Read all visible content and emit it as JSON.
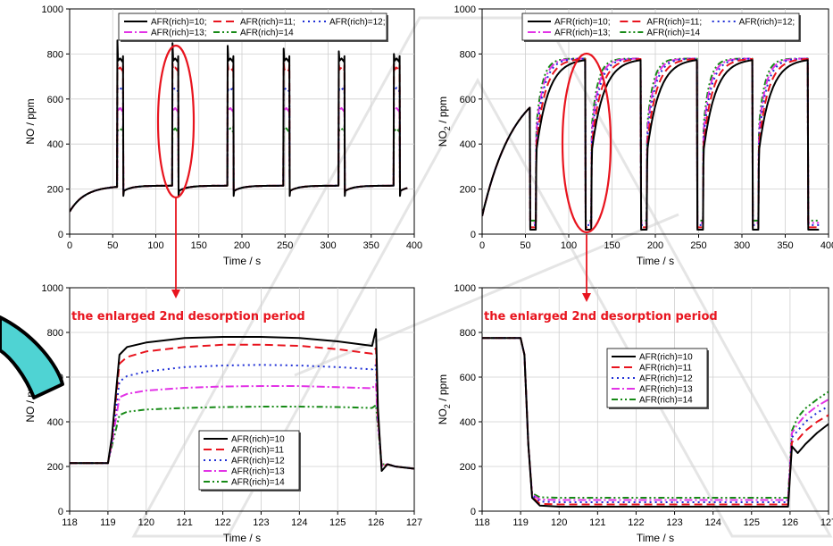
{
  "colors": {
    "s10": "#000000",
    "s11": "#e8141e",
    "s12": "#1f2fd6",
    "s13": "#e233e6",
    "s14": "#168a16",
    "annotation": "#e8141e",
    "watermark": "#cfcfcf",
    "watermark_fill": "#4fd3d3"
  },
  "chart_data": [
    {
      "id": "tl",
      "type": "line",
      "xlabel": "Time / s",
      "ylabel": "NO / ppm",
      "ylim": [
        0,
        1000
      ],
      "xlim": [
        0,
        400
      ],
      "yticks": [
        "0",
        "200",
        "400",
        "600",
        "800",
        "1000"
      ],
      "xticks": [
        "0",
        "50",
        "100",
        "150",
        "200",
        "250",
        "300",
        "350",
        "400"
      ],
      "grid": true,
      "legend": "top-center",
      "series_names": [
        "AFR(rich)=10;",
        "AFR(rich)=11;",
        "AFR(rich)=12;",
        "AFR(rich)=13;",
        "AFR(rich)=14"
      ],
      "lean_ppm": [
        100,
        215
      ],
      "desorption_start_s": [
        55,
        119,
        183,
        248,
        312,
        376
      ],
      "desorption_peak_ppm": [
        780,
        740,
        650,
        560,
        470
      ]
    },
    {
      "id": "tr",
      "type": "line",
      "xlabel": "Time / s",
      "ylabel": "NO",
      "ylabel_sub": "2",
      "ylabel_suffix": " / ppm",
      "ylim": [
        0,
        1000
      ],
      "xlim": [
        0,
        400
      ],
      "yticks": [
        "0",
        "200",
        "400",
        "600",
        "800",
        "1000"
      ],
      "xticks": [
        "0",
        "50",
        "100",
        "150",
        "200",
        "250",
        "300",
        "350",
        "400"
      ],
      "grid": true,
      "legend": "top-center",
      "series_names": [
        "AFR(rich)=10;",
        "AFR(rich)=11;",
        "AFR(rich)=12;",
        "AFR(rich)=13;",
        "AFR(rich)=14"
      ],
      "lean_max_ppm": 780,
      "rich_min_ppm": [
        20,
        30,
        40,
        50,
        60
      ]
    },
    {
      "id": "bl",
      "type": "line",
      "xlabel": "Time / s",
      "ylabel": "NO / ppm",
      "ylim": [
        0,
        1000
      ],
      "xlim": [
        118,
        127
      ],
      "yticks": [
        "0",
        "200",
        "400",
        "600",
        "800",
        "1000"
      ],
      "xticks": [
        "118",
        "119",
        "120",
        "121",
        "122",
        "123",
        "124",
        "125",
        "126",
        "127"
      ],
      "grid": true,
      "legend": "bottom-center",
      "annotation": "the enlarged 2nd desorption period",
      "series": [
        {
          "name": "AFR(rich)=10",
          "x": [
            118,
            119,
            119.1,
            119.3,
            119.5,
            120,
            121,
            122,
            123,
            124,
            125,
            125.9,
            126.0,
            126.05,
            126.15,
            126.3,
            126.5,
            127
          ],
          "y": [
            215,
            215,
            330,
            700,
            735,
            755,
            775,
            780,
            780,
            775,
            760,
            740,
            815,
            460,
            180,
            210,
            200,
            190
          ]
        },
        {
          "name": "AFR(rich)=11",
          "x": [
            118,
            119,
            119.1,
            119.3,
            119.5,
            120,
            121,
            122,
            123,
            124,
            125,
            125.9,
            126.0,
            126.05,
            126.15,
            126.3,
            126.5,
            127
          ],
          "y": [
            215,
            215,
            320,
            660,
            690,
            715,
            735,
            745,
            745,
            740,
            725,
            705,
            730,
            430,
            195,
            210,
            200,
            190
          ]
        },
        {
          "name": "AFR(rich)=12",
          "x": [
            118,
            119,
            119.1,
            119.3,
            119.5,
            120,
            121,
            122,
            123,
            124,
            125,
            125.9,
            126.0,
            126.05,
            126.15,
            126.3,
            126.5,
            127
          ],
          "y": [
            215,
            215,
            310,
            580,
            605,
            625,
            645,
            652,
            655,
            652,
            645,
            635,
            655,
            420,
            200,
            210,
            200,
            190
          ]
        },
        {
          "name": "AFR(rich)=13",
          "x": [
            118,
            119,
            119.1,
            119.3,
            119.5,
            120,
            121,
            122,
            123,
            124,
            125,
            125.9,
            126.0,
            126.05,
            126.15,
            126.3,
            126.5,
            127
          ],
          "y": [
            215,
            215,
            300,
            510,
            525,
            540,
            552,
            558,
            560,
            560,
            555,
            550,
            570,
            400,
            205,
            210,
            200,
            190
          ]
        },
        {
          "name": "AFR(rich)=14",
          "x": [
            118,
            119,
            119.1,
            119.3,
            119.5,
            120,
            121,
            122,
            123,
            124,
            125,
            125.9,
            126.0,
            126.05,
            126.15,
            126.3,
            126.5,
            127
          ],
          "y": [
            215,
            215,
            290,
            430,
            445,
            455,
            462,
            466,
            468,
            468,
            466,
            462,
            475,
            380,
            210,
            210,
            200,
            190
          ]
        }
      ]
    },
    {
      "id": "br",
      "type": "line",
      "xlabel": "Time / s",
      "ylabel": "NO",
      "ylabel_sub": "2",
      "ylabel_suffix": " / ppm",
      "ylim": [
        0,
        1000
      ],
      "xlim": [
        118,
        127
      ],
      "yticks": [
        "0",
        "200",
        "400",
        "600",
        "800",
        "1000"
      ],
      "xticks": [
        "118",
        "119",
        "120",
        "121",
        "122",
        "123",
        "124",
        "125",
        "126",
        "127"
      ],
      "grid": true,
      "legend": "center",
      "annotation": "the enlarged 2nd desorption period",
      "series": [
        {
          "name": "AFR(rich)=10",
          "x": [
            118,
            119,
            119.1,
            119.2,
            119.3,
            119.5,
            120,
            121,
            122,
            123,
            124,
            125,
            125.95,
            126.05,
            126.2,
            126.4,
            126.7,
            127
          ],
          "y": [
            775,
            775,
            700,
            300,
            60,
            25,
            20,
            20,
            20,
            20,
            20,
            20,
            20,
            290,
            260,
            300,
            350,
            390
          ]
        },
        {
          "name": "AFR(rich)=11",
          "x": [
            118,
            119,
            119.1,
            119.2,
            119.3,
            119.5,
            120,
            121,
            122,
            123,
            124,
            125,
            125.95,
            126.05,
            126.2,
            126.4,
            126.7,
            127
          ],
          "y": [
            775,
            775,
            700,
            300,
            65,
            33,
            30,
            30,
            30,
            30,
            30,
            30,
            30,
            310,
            320,
            360,
            400,
            430
          ]
        },
        {
          "name": "AFR(rich)=12",
          "x": [
            118,
            119,
            119.1,
            119.2,
            119.3,
            119.5,
            120,
            121,
            122,
            123,
            124,
            125,
            125.95,
            126.05,
            126.2,
            126.4,
            126.7,
            127
          ],
          "y": [
            775,
            775,
            700,
            300,
            70,
            43,
            40,
            40,
            40,
            40,
            40,
            40,
            40,
            330,
            360,
            400,
            440,
            470
          ]
        },
        {
          "name": "AFR(rich)=13",
          "x": [
            118,
            119,
            119.1,
            119.2,
            119.3,
            119.5,
            120,
            121,
            122,
            123,
            124,
            125,
            125.95,
            126.05,
            126.2,
            126.4,
            126.7,
            127
          ],
          "y": [
            775,
            775,
            700,
            300,
            75,
            52,
            50,
            50,
            50,
            50,
            50,
            50,
            50,
            350,
            390,
            430,
            470,
            500
          ]
        },
        {
          "name": "AFR(rich)=14",
          "x": [
            118,
            119,
            119.1,
            119.2,
            119.3,
            119.5,
            120,
            121,
            122,
            123,
            124,
            125,
            125.95,
            126.05,
            126.2,
            126.4,
            126.7,
            127
          ],
          "y": [
            775,
            775,
            700,
            300,
            80,
            62,
            60,
            60,
            60,
            60,
            60,
            60,
            60,
            360,
            420,
            460,
            500,
            535
          ]
        }
      ]
    }
  ]
}
